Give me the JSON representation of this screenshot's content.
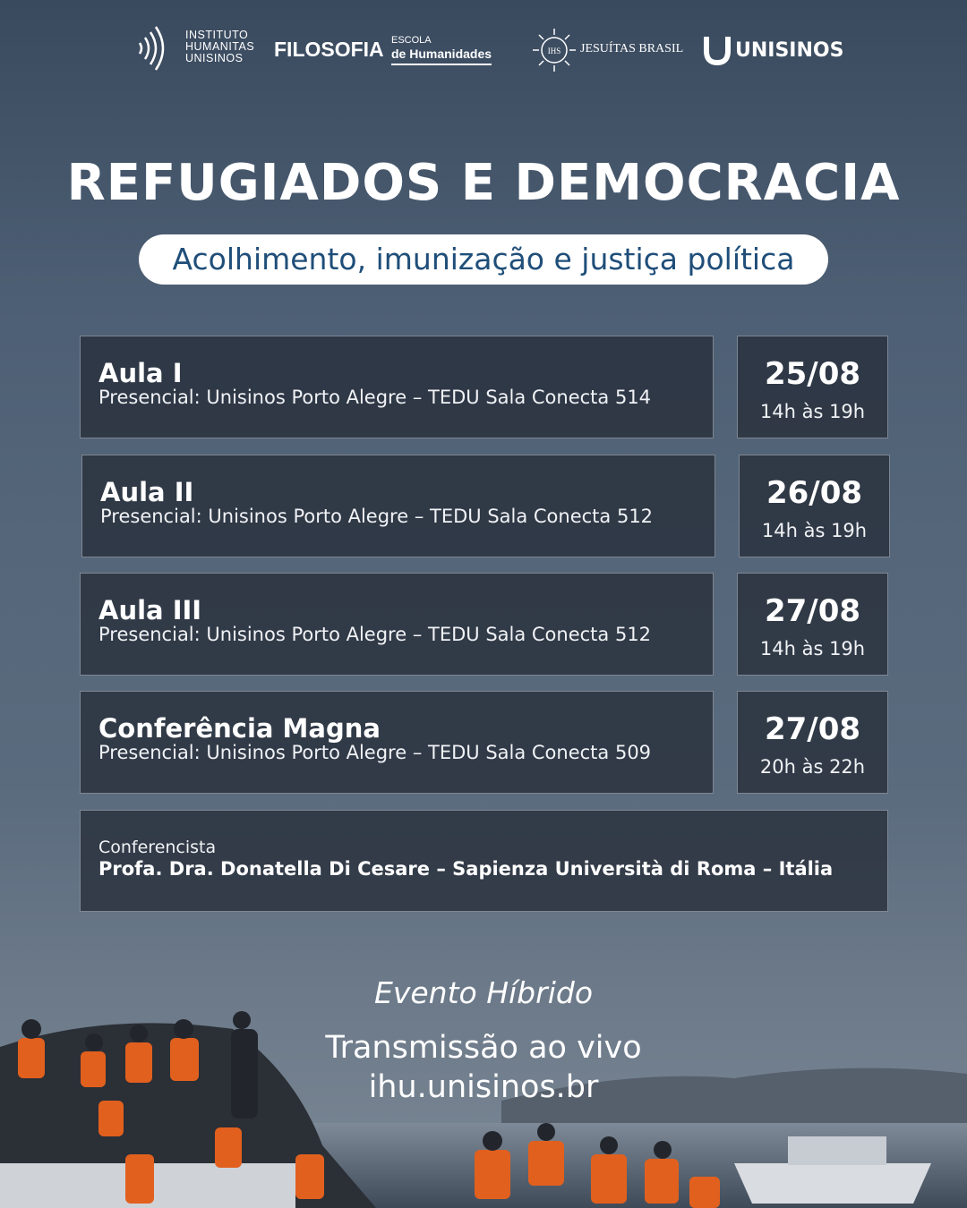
{
  "header": {
    "instituto": [
      "INSTITUTO",
      "HUMANITAS",
      "UNISINOS"
    ],
    "filosofia": "FILOSOFIA",
    "escola": [
      "ESCOLA",
      "de Humanidades"
    ],
    "jesuitas_mark": "IHS",
    "jesuitas": "JESUÍTAS BRASIL",
    "unisinos": "UNISINOS"
  },
  "title": "REFUGIADOS E DEMOCRACIA",
  "subtitle": "Acolhimento, imunização e justiça política",
  "sessions": [
    {
      "name": "Aula I",
      "location": "Presencial: Unisinos Porto Alegre – TEDU Sala Conecta 514",
      "date": "25/08",
      "time": "14h às 19h"
    },
    {
      "name": "Aula II",
      "location": "Presencial: Unisinos Porto Alegre – TEDU Sala Conecta 512",
      "date": "26/08",
      "time": "14h às 19h"
    },
    {
      "name": "Aula III",
      "location": "Presencial: Unisinos Porto Alegre – TEDU Sala Conecta 512",
      "date": "27/08",
      "time": "14h às 19h"
    },
    {
      "name": "Conferência Magna",
      "location": "Presencial: Unisinos Porto Alegre – TEDU Sala Conecta 509",
      "date": "27/08",
      "time": "20h às 22h"
    }
  ],
  "speaker": {
    "label": "Conferencista",
    "name": "Profa. Dra. Donatella Di Cesare – Sapienza Università di Roma – Itália"
  },
  "footer": {
    "mode": "Evento Híbrido",
    "stream": "Transmissão ao vivo",
    "url": "ihu.unisinos.br"
  }
}
